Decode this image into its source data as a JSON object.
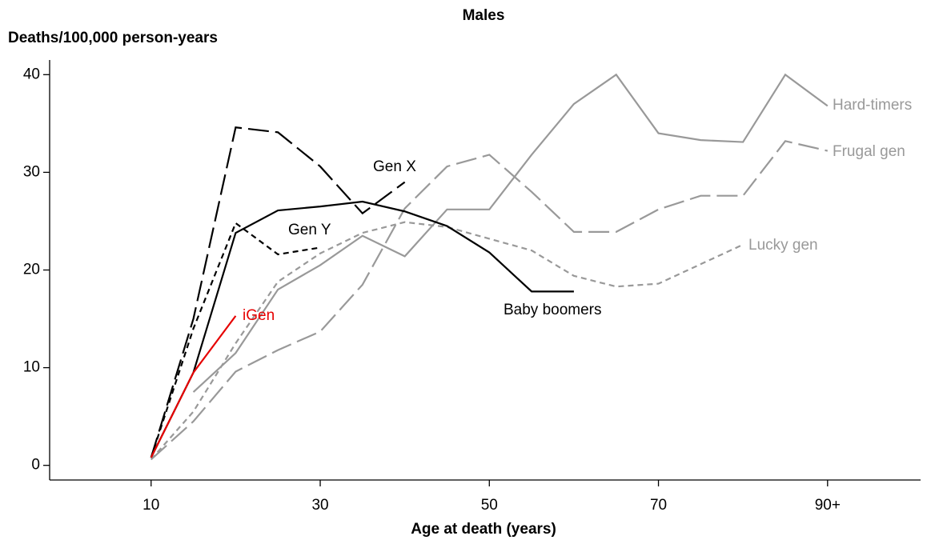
{
  "chart_data": {
    "type": "line",
    "title": "Males",
    "ylabel": "Deaths/100,000 person-years",
    "xlabel": "Age at death (years)",
    "xlim": [
      -2,
      101
    ],
    "ylim": [
      -1.5,
      41.5
    ],
    "xticks": [
      10,
      30,
      50,
      70,
      {
        "value": 90,
        "label": "90+"
      }
    ],
    "yticks": [
      0,
      10,
      20,
      30,
      40
    ],
    "series": [
      {
        "name": "Hard-timers",
        "color": "#999999",
        "dash": "solid",
        "x": [
          15,
          20,
          25,
          30,
          35,
          40,
          45,
          50,
          55,
          60,
          65,
          70,
          75,
          80,
          85,
          90
        ],
        "values": [
          7.5,
          11.5,
          18,
          20.5,
          23.5,
          21.4,
          26.2,
          26.2,
          31.8,
          37,
          40,
          34,
          33.3,
          33.1,
          40,
          36.8
        ]
      },
      {
        "name": "Frugal gen",
        "color": "#999999",
        "dash": "long",
        "x": [
          10,
          15,
          20,
          25,
          30,
          35,
          40,
          45,
          50,
          55,
          60,
          65,
          70,
          75,
          80,
          85,
          90
        ],
        "values": [
          0.6,
          4.5,
          9.6,
          11.8,
          13.7,
          18.5,
          26.3,
          30.6,
          31.8,
          28,
          23.9,
          23.9,
          26.2,
          27.6,
          27.6,
          33.2,
          32.2
        ]
      },
      {
        "name": "Lucky gen",
        "color": "#999999",
        "dash": "short",
        "x": [
          10,
          15,
          20,
          25,
          30,
          35,
          40,
          45,
          50,
          55,
          60,
          65,
          70,
          75,
          80
        ],
        "values": [
          0.6,
          5.5,
          12.5,
          18.8,
          21.7,
          23.8,
          24.9,
          24.4,
          23.2,
          22,
          19.4,
          18.3,
          18.6,
          20.6,
          22.6
        ]
      },
      {
        "name": "Baby boomers",
        "color": "#000000",
        "dash": "solid",
        "x": [
          10,
          15,
          20,
          25,
          30,
          35,
          40,
          45,
          50,
          55,
          60
        ],
        "values": [
          0.8,
          9.5,
          23.8,
          26.1,
          26.5,
          27,
          26,
          24.5,
          21.8,
          17.8,
          17.8
        ]
      },
      {
        "name": "Gen X",
        "color": "#000000",
        "dash": "long",
        "x": [
          10,
          15,
          20,
          25,
          30,
          35,
          40
        ],
        "values": [
          0.8,
          15,
          34.6,
          34.1,
          30.6,
          25.8,
          29
        ]
      },
      {
        "name": "Gen Y",
        "color": "#000000",
        "dash": "short",
        "x": [
          10,
          15,
          20,
          25,
          30
        ],
        "values": [
          0.8,
          14,
          24.8,
          21.6,
          22.3
        ]
      },
      {
        "name": "iGen",
        "color": "#e60000",
        "dash": "solid",
        "x": [
          10,
          15,
          20
        ],
        "values": [
          0.8,
          9.5,
          15.3
        ]
      }
    ]
  }
}
